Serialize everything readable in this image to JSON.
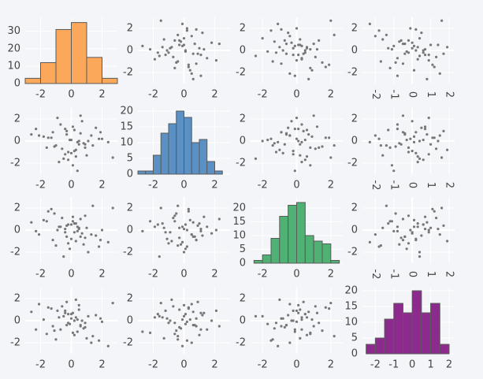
{
  "chart_data": {
    "type": "splom",
    "variables": [
      {
        "values": [
          0.5,
          -1.2,
          0.3,
          1.8,
          -0.4,
          0.9,
          -2.1,
          0.1,
          1.1,
          -0.7,
          0.2,
          -1.5,
          2.4,
          -0.2,
          0.6,
          -0.9,
          1.4,
          0.0,
          -0.3,
          0.8,
          -1.8,
          0.4,
          1.6,
          -0.6,
          -0.1,
          1.0,
          -2.6,
          0.7,
          -1.1,
          0.3,
          2.0,
          -0.5,
          0.2,
          -1.3,
          0.9,
          -0.8,
          1.3,
          0.1,
          -0.2,
          0.5,
          -1.6,
          1.9,
          -0.4,
          0.6,
          -1.0,
          0.0,
          2.7,
          -0.3,
          0.4,
          -2.3
        ],
        "xlim": [
          -3,
          3
        ],
        "xticks": [
          -2,
          0,
          2
        ],
        "ylim": [
          -3,
          3
        ],
        "yticks": [
          -2,
          0,
          2
        ]
      },
      {
        "values": [
          -0.3,
          0.8,
          -1.4,
          0.2,
          1.1,
          -0.6,
          0.5,
          -2.2,
          0.0,
          1.5,
          -0.9,
          0.3,
          -0.1,
          -1.7,
          0.7,
          2.1,
          -0.4,
          -1.1,
          0.9,
          -0.2,
          0.4,
          -2.7,
          1.2,
          -0.7,
          0.1,
          -1.3,
          0.6,
          1.8,
          -0.5,
          -0.8,
          0.2,
          -1.6,
          1.0,
          0.3,
          -0.3,
          -1.9,
          0.5,
          1.3,
          -1.0,
          0.0,
          -0.6,
          0.8,
          -1.2,
          2.3,
          -0.4,
          0.1,
          -1.5,
          0.6,
          -0.1,
          1.1
        ],
        "xlim": [
          -3,
          3
        ],
        "xticks": [
          -2,
          0,
          2
        ],
        "ylim": [
          -3,
          3
        ],
        "yticks": [
          -2,
          0,
          2
        ]
      },
      {
        "values": [
          0.2,
          -0.9,
          0.6,
          -1.5,
          0.1,
          1.3,
          -0.4,
          0.8,
          -2.0,
          0.3,
          -0.2,
          1.7,
          -1.1,
          0.5,
          -0.6,
          0.0,
          2.2,
          -0.8,
          0.4,
          -1.3,
          0.9,
          -0.1,
          -0.5,
          1.1,
          -1.7,
          0.2,
          0.7,
          -0.3,
          1.5,
          -1.0,
          0.0,
          -2.4,
          0.6,
          1.9,
          -0.7,
          0.3,
          -0.4,
          1.2,
          -1.2,
          0.1,
          0.8,
          -0.9,
          -0.2,
          1.0,
          -1.4,
          0.5,
          2.0,
          -0.6,
          0.3,
          -0.1
        ],
        "xlim": [
          -2.7,
          2.7
        ],
        "xticks": [
          -2,
          0,
          2
        ],
        "ylim": [
          -3,
          3
        ],
        "yticks": [
          -2,
          0,
          2
        ]
      },
      {
        "values": [
          1.0,
          -0.5,
          0.3,
          -1.8,
          0.7,
          -0.2,
          1.5,
          -1.1,
          0.4,
          -0.8,
          0.0,
          1.2,
          -2.3,
          0.6,
          -0.4,
          0.9,
          -1.4,
          0.2,
          1.7,
          -0.7,
          0.1,
          -1.0,
          0.5,
          1.3,
          -0.3,
          -1.6,
          0.8,
          0.0,
          -0.9,
          1.9,
          -0.1,
          0.4,
          -1.3,
          1.1,
          -0.6,
          0.3,
          -2.0,
          0.7,
          -0.2,
          1.4,
          -1.2,
          0.2,
          0.9,
          -0.5,
          -1.7,
          0.6,
          1.6,
          -0.4,
          0.1,
          -0.8
        ],
        "xlim": [
          -2.7,
          2.3
        ],
        "xticks": [
          -2,
          -1,
          0,
          1,
          2
        ],
        "ylim": [
          -3,
          3
        ],
        "yticks": [
          -2,
          0,
          2
        ]
      }
    ],
    "histograms": [
      {
        "color": "#fca85b",
        "bins": [
          -3,
          -2,
          -1,
          0,
          1,
          2,
          3
        ],
        "counts": [
          3,
          12,
          31,
          35,
          15,
          3
        ],
        "ylim": [
          0,
          38
        ],
        "yticks": [
          0,
          10,
          20,
          30
        ]
      },
      {
        "color": "#5b90c4",
        "bins": [
          -3,
          -2.5,
          -2,
          -1.5,
          -1,
          -0.5,
          0,
          0.5,
          1,
          1.5,
          2,
          2.5
        ],
        "counts": [
          1,
          1,
          6,
          13,
          16,
          20,
          18,
          10,
          11,
          4,
          1
        ],
        "ylim": [
          0,
          21
        ],
        "yticks": [
          0,
          5,
          10,
          15,
          20
        ]
      },
      {
        "color": "#4fb274",
        "bins": [
          -2.5,
          -2,
          -1.5,
          -1,
          -0.5,
          0,
          0.5,
          1,
          1.5,
          2,
          2.5
        ],
        "counts": [
          1,
          3,
          9,
          17,
          21,
          22,
          10,
          8,
          7,
          1
        ],
        "ylim": [
          0,
          24
        ],
        "yticks": [
          0,
          5,
          10,
          15,
          20
        ]
      },
      {
        "color": "#8d2a8d",
        "bins": [
          -2.5,
          -2,
          -1.5,
          -1,
          -0.5,
          0,
          0.5,
          1,
          1.5,
          2
        ],
        "counts": [
          3,
          5,
          11,
          16,
          13,
          20,
          13,
          16,
          3
        ],
        "ylim": [
          0,
          21
        ],
        "yticks": [
          0,
          5,
          10,
          15,
          20
        ]
      }
    ],
    "point_color": "#777777"
  }
}
